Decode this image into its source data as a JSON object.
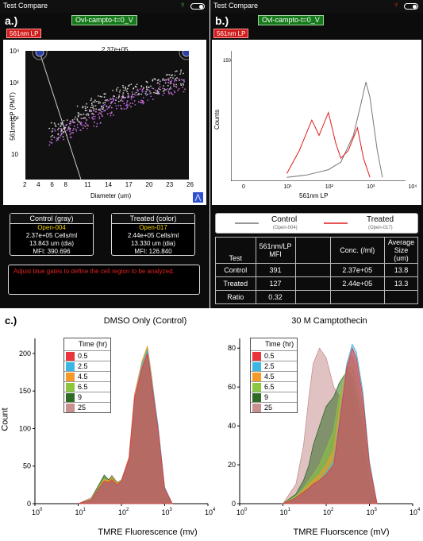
{
  "panel_a": {
    "tab_title": "Test Compare",
    "label": "a.)",
    "channel_bar": "Ovl-campto-t=0_V",
    "channel_tag": "561nm LP",
    "gate_value": "2.37e+05",
    "ylabel": "561nm LP (PMT)",
    "xlabel": "Diameter (um)",
    "y_ticks": [
      "10⁴",
      "10³",
      "10²",
      "10"
    ],
    "x_ticks": [
      "2",
      "4",
      "6",
      "8",
      "11",
      "14",
      "17",
      "20",
      "23",
      "26"
    ],
    "control_box": {
      "title": "Control (gray)",
      "file": "Open-004",
      "conc": "2.37e+05 Cells/ml",
      "dia": "13.843 um (dia)",
      "mfi": "MFI: 390.696"
    },
    "treated_box": {
      "title": "Treated (color)",
      "file": "Open-017",
      "conc": "2.44e+05 Cells/ml",
      "dia": "13.330 um (dia)",
      "mfi": "MFI: 126.840"
    },
    "message": "Adjust blue gates to define the cell region to be analyzed.",
    "colors": {
      "bg": "#0c0c0c",
      "gate": "#2b3fa8",
      "tag": "#d21c1c",
      "bar": "#157a1a"
    }
  },
  "panel_b": {
    "tab_title": "Test Compare",
    "label": "b.)",
    "channel_bar": "Ovl-campto-t=0_V",
    "channel_tag": "561nm LP",
    "ylabel": "Counts",
    "xlabel": "561nm LP",
    "y_tick_top": "150",
    "x_ticks": [
      "0",
      "10¹",
      "10²",
      "10³",
      "10⁴"
    ],
    "legend": {
      "control": "Control",
      "control_sub": "(Open-004)",
      "treated": "Treated",
      "treated_sub": "(Open-017)"
    },
    "table": {
      "headers": [
        "Test",
        "561nm/LP MFI",
        "",
        "Conc. (/ml)",
        "Average Size (um)"
      ],
      "rows": [
        [
          "Control",
          "391",
          "",
          "2.37e+05",
          "13.8"
        ],
        [
          "Treated",
          "127",
          "",
          "2.44e+05",
          "13.3"
        ],
        [
          "Ratio",
          "0.32",
          "",
          "",
          ""
        ]
      ]
    }
  },
  "panel_c": {
    "label": "c.)",
    "ylabel": "Count",
    "left": {
      "title": "DMSO Only (Control)",
      "xlabel": "TMRE Fluorescence (mv)"
    },
    "right": {
      "title": "30 M Camptothecin",
      "xlabel": "TMRE Fluorscence (mV)"
    },
    "legend_title": "Time (hr)",
    "legend_items": [
      {
        "label": "0.5",
        "color": "#e8343a"
      },
      {
        "label": "2.5",
        "color": "#3cb6e3"
      },
      {
        "label": "4.5",
        "color": "#f39a2b"
      },
      {
        "label": "6.5",
        "color": "#8cc63e"
      },
      {
        "label": "9",
        "color": "#2f6b27"
      },
      {
        "label": "25",
        "color": "#c8908f"
      }
    ]
  },
  "chart_data": [
    {
      "type": "scatter",
      "title": "",
      "xlabel": "Diameter (um)",
      "ylabel": "561nm LP (PMT)",
      "xlim": [
        2,
        26
      ],
      "ylim": [
        1,
        10000
      ],
      "y_scale": "log",
      "series": [
        {
          "name": "Control (gray)",
          "points": [
            [
              6,
              30
            ],
            [
              9,
              70
            ],
            [
              12,
              200
            ],
            [
              15,
              400
            ],
            [
              18,
              600
            ],
            [
              22,
              900
            ],
            [
              25,
              1500
            ]
          ]
        },
        {
          "name": "Treated (color)",
          "points": [
            [
              6,
              20
            ],
            [
              9,
              40
            ],
            [
              12,
              80
            ],
            [
              15,
              200
            ],
            [
              18,
              350
            ],
            [
              22,
              600
            ],
            [
              25,
              1000
            ]
          ]
        }
      ]
    },
    {
      "type": "line",
      "title": "",
      "xlabel": "561nm LP",
      "ylabel": "Counts",
      "ylim": [
        0,
        150
      ],
      "x_scale": "log",
      "series": [
        {
          "name": "Control",
          "x": [
            10,
            30,
            100,
            200,
            400,
            600,
            800,
            1000,
            1500,
            2000
          ],
          "values": [
            5,
            8,
            15,
            25,
            60,
            100,
            130,
            110,
            40,
            5
          ]
        },
        {
          "name": "Treated",
          "x": [
            10,
            20,
            40,
            60,
            100,
            150,
            200,
            300,
            500,
            700,
            1000
          ],
          "values": [
            10,
            40,
            80,
            60,
            90,
            50,
            30,
            40,
            70,
            30,
            5
          ]
        }
      ]
    },
    {
      "type": "area",
      "title": "DMSO Only (Control)",
      "xlabel": "TMRE Fluorescence (mv)",
      "ylabel": "Count",
      "x_scale": "log",
      "xlim": [
        1,
        10000
      ],
      "ylim": [
        0,
        220
      ],
      "x": [
        10,
        20,
        30,
        40,
        50,
        60,
        80,
        100,
        150,
        200,
        300,
        400,
        500,
        700,
        1000,
        1500
      ],
      "series": [
        {
          "name": "0.5",
          "values": [
            0,
            5,
            20,
            30,
            28,
            32,
            25,
            30,
            60,
            140,
            180,
            200,
            160,
            100,
            20,
            0
          ]
        },
        {
          "name": "2.5",
          "values": [
            0,
            5,
            18,
            28,
            26,
            30,
            24,
            28,
            58,
            138,
            185,
            205,
            165,
            105,
            22,
            0
          ]
        },
        {
          "name": "4.5",
          "values": [
            0,
            5,
            20,
            32,
            30,
            34,
            26,
            30,
            62,
            142,
            190,
            210,
            170,
            100,
            20,
            0
          ]
        },
        {
          "name": "6.5",
          "values": [
            0,
            6,
            22,
            34,
            30,
            35,
            27,
            31,
            60,
            140,
            188,
            208,
            168,
            100,
            20,
            0
          ]
        },
        {
          "name": "9",
          "values": [
            0,
            6,
            25,
            38,
            32,
            36,
            28,
            30,
            60,
            140,
            185,
            205,
            165,
            100,
            20,
            0
          ]
        },
        {
          "name": "25",
          "values": [
            0,
            8,
            25,
            36,
            30,
            38,
            28,
            32,
            62,
            145,
            190,
            205,
            165,
            100,
            20,
            0
          ]
        }
      ]
    },
    {
      "type": "area",
      "title": "30 M Camptothecin",
      "xlabel": "TMRE Fluorscence (mV)",
      "ylabel": "Count",
      "x_scale": "log",
      "xlim": [
        1,
        10000
      ],
      "ylim": [
        0,
        85
      ],
      "x": [
        10,
        20,
        30,
        40,
        50,
        70,
        100,
        150,
        200,
        300,
        400,
        500,
        700,
        1000,
        1500
      ],
      "series": [
        {
          "name": "0.5",
          "values": [
            0,
            3,
            6,
            8,
            10,
            12,
            15,
            20,
            40,
            70,
            80,
            75,
            55,
            20,
            0
          ]
        },
        {
          "name": "2.5",
          "values": [
            0,
            3,
            6,
            8,
            10,
            12,
            16,
            22,
            42,
            72,
            82,
            78,
            58,
            22,
            0
          ]
        },
        {
          "name": "4.5",
          "values": [
            0,
            3,
            7,
            10,
            12,
            15,
            20,
            28,
            48,
            72,
            76,
            70,
            50,
            18,
            0
          ]
        },
        {
          "name": "6.5",
          "values": [
            0,
            4,
            8,
            12,
            15,
            20,
            28,
            38,
            55,
            70,
            70,
            62,
            45,
            15,
            0
          ]
        },
        {
          "name": "9",
          "values": [
            0,
            5,
            12,
            20,
            30,
            40,
            50,
            55,
            62,
            68,
            65,
            55,
            40,
            12,
            0
          ]
        },
        {
          "name": "25",
          "values": [
            0,
            10,
            30,
            55,
            72,
            80,
            75,
            60,
            55,
            58,
            55,
            45,
            30,
            8,
            0
          ]
        }
      ]
    }
  ]
}
